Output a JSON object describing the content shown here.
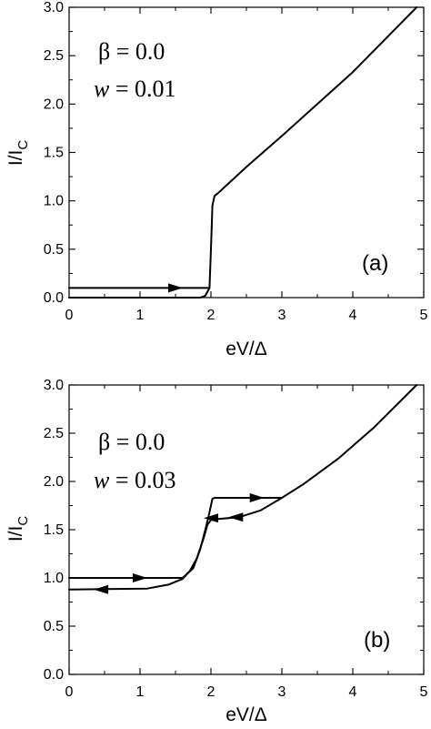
{
  "chart_data": [
    {
      "type": "line",
      "panel_label": "(a)",
      "xlabel": "eV/Δ",
      "ylabel_main": "I/I",
      "ylabel_sub": "C",
      "xlim": [
        0,
        5
      ],
      "ylim": [
        0,
        3.0
      ],
      "xticks": [
        "0",
        "1",
        "2",
        "3",
        "4",
        "5"
      ],
      "yticks": [
        "0.0",
        "0.5",
        "1.0",
        "1.5",
        "2.0",
        "2.5",
        "3.0"
      ],
      "annotations": {
        "beta": "β = 0.0",
        "w_prefix": "w",
        "w_value": " = 0.01"
      },
      "series": [
        {
          "values": [
            [
              0,
              0.1
            ],
            [
              1.3,
              0.1
            ],
            [
              1.98,
              0.1
            ]
          ]
        },
        {
          "values": [
            [
              0,
              0.0
            ],
            [
              1.85,
              0.0
            ],
            [
              1.92,
              0.02
            ],
            [
              1.98,
              0.1
            ],
            [
              2.0,
              0.5
            ],
            [
              2.02,
              0.95
            ],
            [
              2.05,
              1.05
            ],
            [
              2.1,
              1.08
            ],
            [
              2.5,
              1.35
            ],
            [
              3,
              1.67
            ],
            [
              4,
              2.33
            ],
            [
              4.9,
              3.0
            ]
          ]
        }
      ],
      "arrows": [
        {
          "x": 1.5,
          "y": 0.1,
          "direction": "right"
        }
      ],
      "grid": false
    },
    {
      "type": "line",
      "panel_label": "(b)",
      "xlabel": "eV/Δ",
      "ylabel_main": "I/I",
      "ylabel_sub": "C",
      "xlim": [
        0,
        5
      ],
      "ylim": [
        0,
        3.0
      ],
      "xticks": [
        "0",
        "1",
        "2",
        "3",
        "4",
        "5"
      ],
      "yticks": [
        "0.0",
        "0.5",
        "1.0",
        "1.5",
        "2.0",
        "2.5",
        "3.0"
      ],
      "annotations": {
        "beta": "β = 0.0",
        "w_prefix": "w",
        "w_value": " = 0.03"
      },
      "series": [
        {
          "values": [
            [
              0,
              1.0
            ],
            [
              1.6,
              1.0
            ],
            [
              1.75,
              1.1
            ],
            [
              1.85,
              1.3
            ],
            [
              1.92,
              1.5
            ],
            [
              1.97,
              1.65
            ],
            [
              2.02,
              1.82
            ],
            [
              2.05,
              1.83
            ],
            [
              3.0,
              1.83
            ],
            [
              3.3,
              1.97
            ],
            [
              3.8,
              2.24
            ],
            [
              4.3,
              2.56
            ],
            [
              4.9,
              3.0
            ]
          ]
        },
        {
          "values": [
            [
              3.0,
              1.83
            ],
            [
              2.7,
              1.7
            ],
            [
              2.4,
              1.63
            ],
            [
              2.1,
              1.61
            ],
            [
              2.0,
              1.6
            ],
            [
              1.95,
              1.55
            ],
            [
              1.9,
              1.42
            ],
            [
              1.8,
              1.2
            ],
            [
              1.7,
              1.07
            ],
            [
              1.6,
              0.99
            ],
            [
              1.4,
              0.93
            ],
            [
              1.1,
              0.89
            ],
            [
              0,
              0.88
            ]
          ]
        }
      ],
      "arrows": [
        {
          "x": 1.0,
          "y": 1.0,
          "direction": "right"
        },
        {
          "x": 0.45,
          "y": 0.88,
          "direction": "left"
        },
        {
          "x": 2.65,
          "y": 1.83,
          "direction": "right"
        },
        {
          "x": 2.35,
          "y": 1.63,
          "direction": "left"
        },
        {
          "x": 2.0,
          "y": 1.62,
          "direction": "left"
        }
      ],
      "grid": false
    }
  ]
}
